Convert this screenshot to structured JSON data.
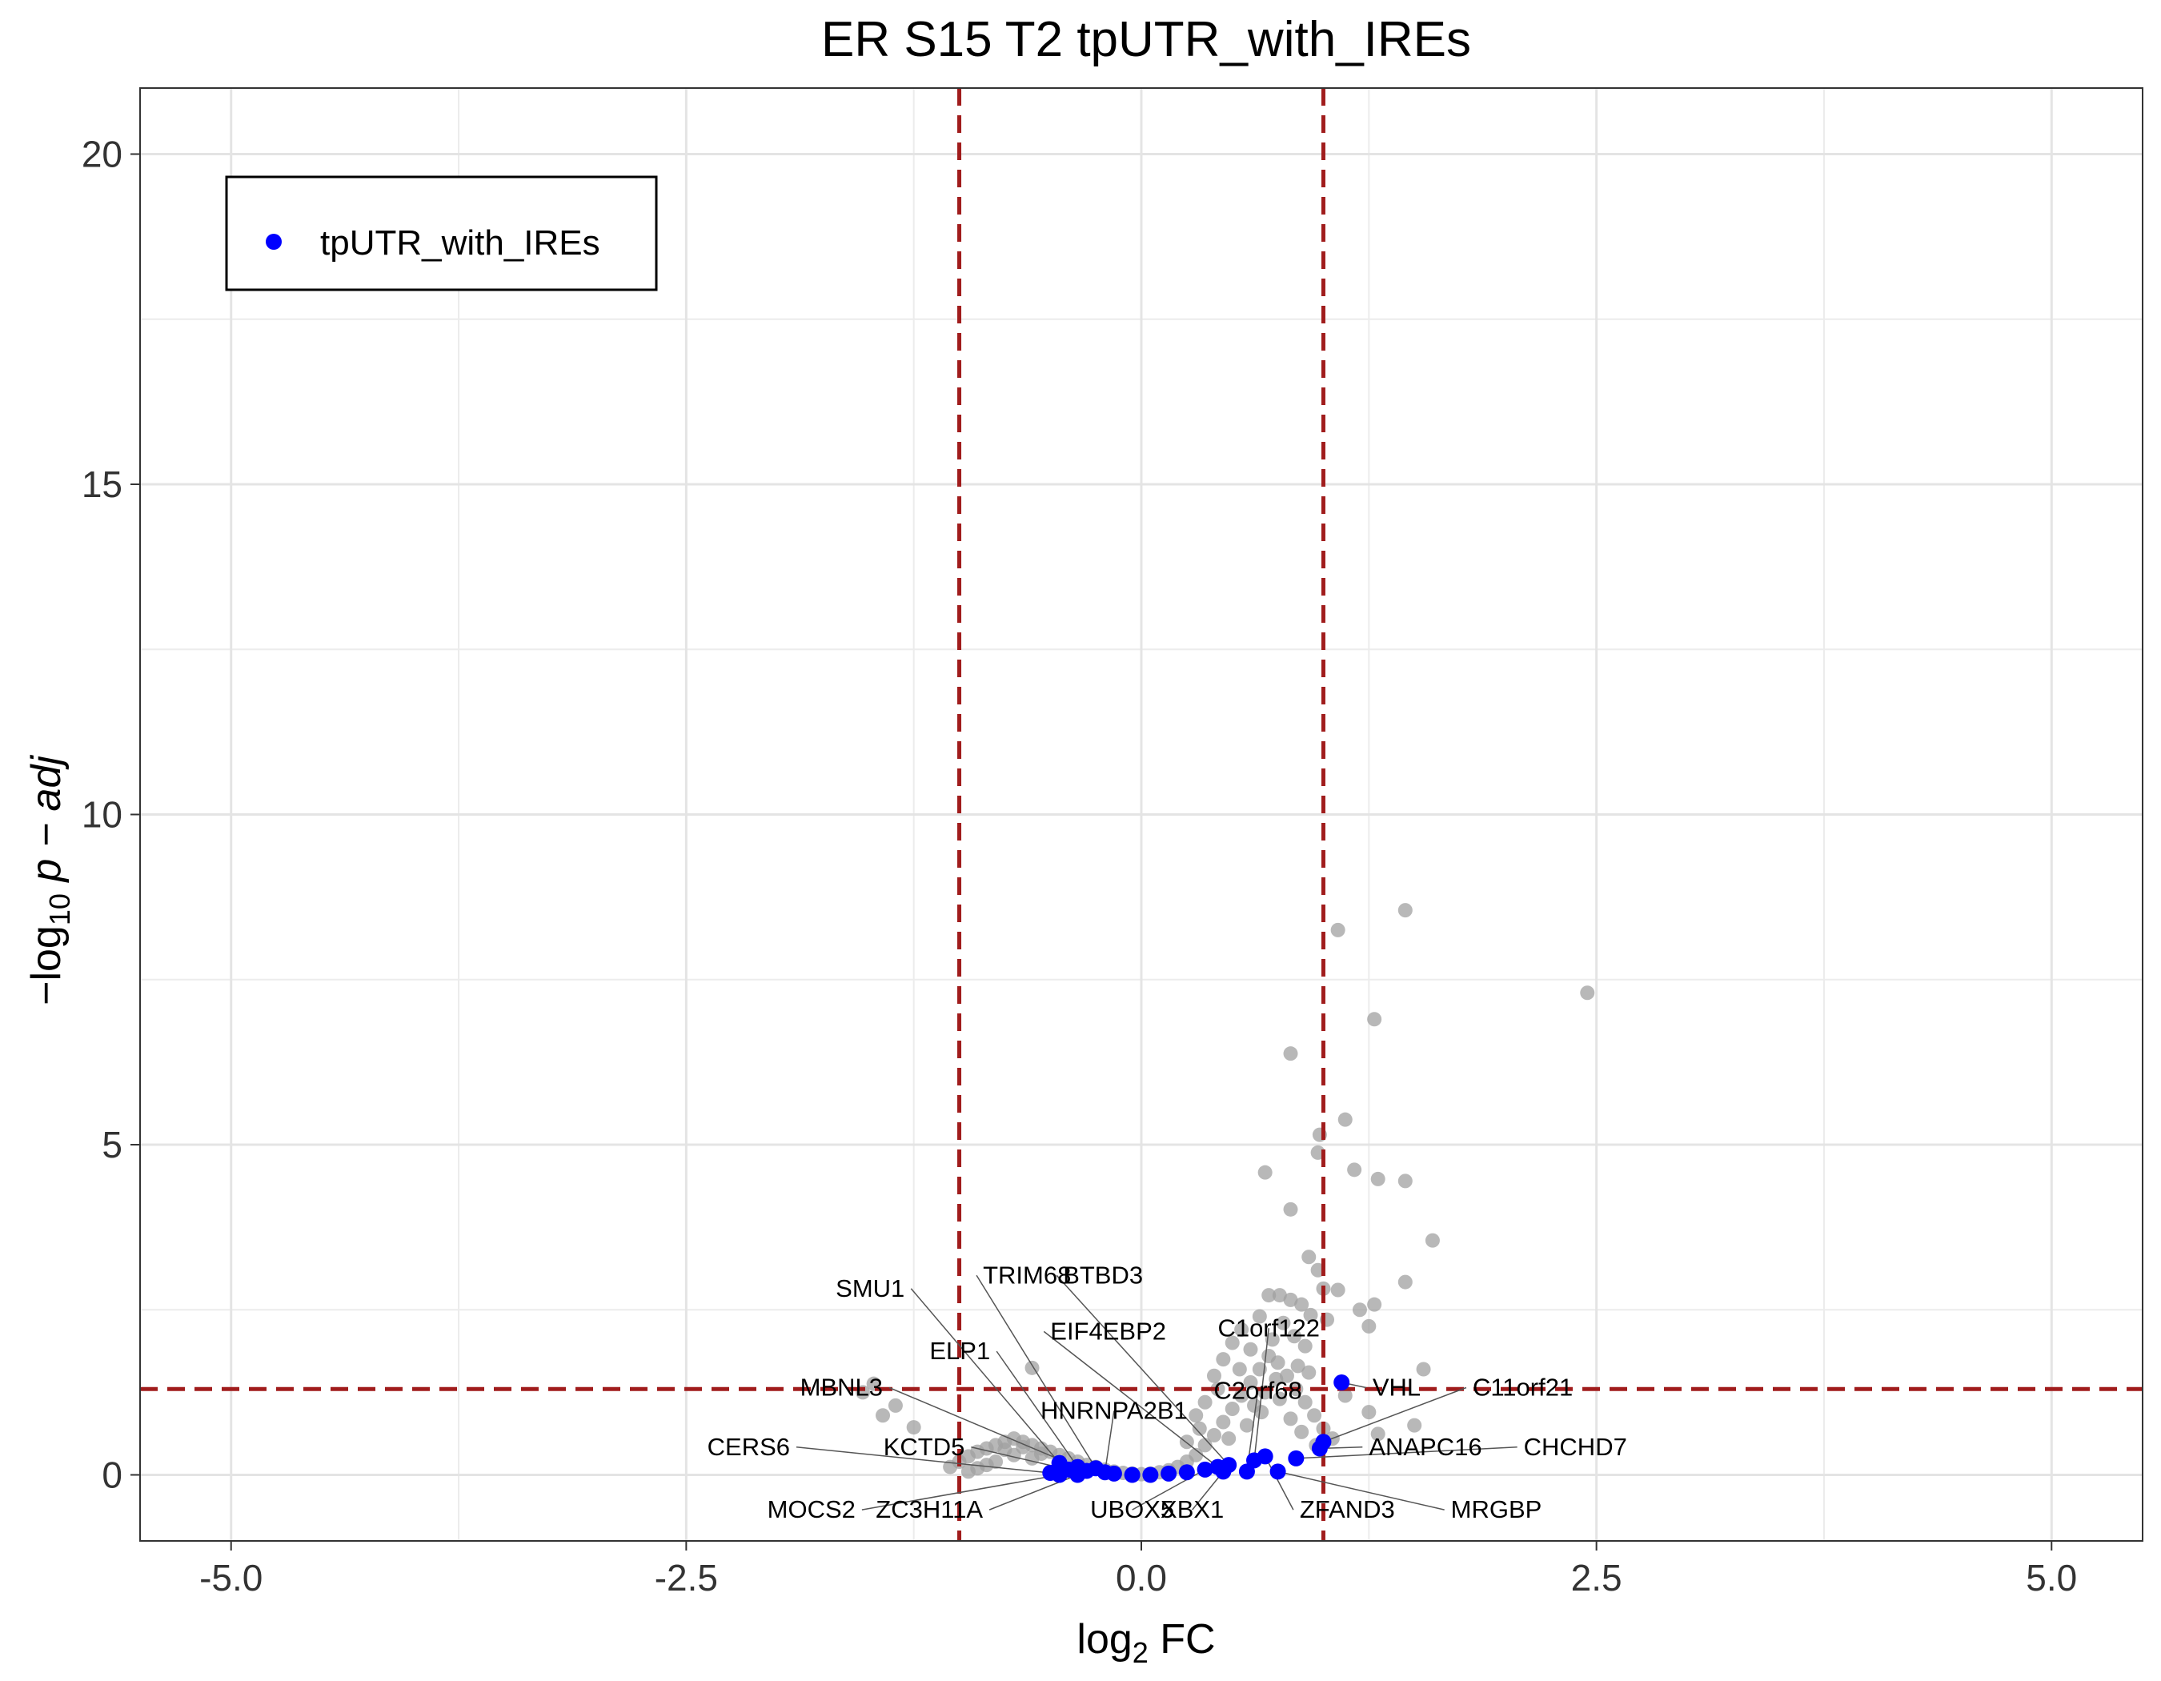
{
  "chart_data": {
    "type": "scatter",
    "title": "ER S15 T2 tpUTR_with_IREs",
    "xlabel": {
      "base": "log",
      "sub": "2",
      "rest": " FC"
    },
    "ylabel": {
      "pre": "−log",
      "sub": "10",
      "rest": " p − adj"
    },
    "xlim": [
      -5.5,
      5.5
    ],
    "ylim": [
      -1,
      21
    ],
    "x_ticks": [
      -5,
      -2.5,
      0,
      2.5,
      5
    ],
    "x_tick_labels": [
      "-5.0",
      "-2.5",
      "0.0",
      "2.5",
      "5.0"
    ],
    "y_ticks": [
      0,
      5,
      10,
      15,
      20
    ],
    "y_tick_labels": [
      "0",
      "5",
      "10",
      "15",
      "20"
    ],
    "thresholds": {
      "x": [
        -1,
        1
      ],
      "y": 1.3
    },
    "grid": true,
    "legend": {
      "position": "top-left",
      "entries": [
        {
          "name": "tpUTR_with_IREs",
          "color": "#0000ff"
        }
      ]
    },
    "colors": {
      "background_points": "#a0a0a0",
      "highlight_points": "#0000ff",
      "threshold_lines": "#a01c1c"
    },
    "background_points": [
      [
        1.45,
        8.55
      ],
      [
        1.08,
        8.25
      ],
      [
        2.45,
        7.3
      ],
      [
        1.28,
        6.9
      ],
      [
        0.82,
        6.38
      ],
      [
        1.12,
        5.38
      ],
      [
        0.98,
        5.15
      ],
      [
        0.97,
        4.88
      ],
      [
        1.17,
        4.62
      ],
      [
        0.68,
        4.58
      ],
      [
        1.3,
        4.48
      ],
      [
        1.45,
        4.45
      ],
      [
        0.82,
        4.02
      ],
      [
        1.6,
        3.55
      ],
      [
        0.92,
        3.3
      ],
      [
        0.97,
        3.1
      ],
      [
        1.45,
        2.92
      ],
      [
        1.0,
        2.82
      ],
      [
        1.08,
        2.8
      ],
      [
        0.7,
        2.72
      ],
      [
        0.76,
        2.72
      ],
      [
        0.82,
        2.65
      ],
      [
        0.88,
        2.58
      ],
      [
        1.2,
        2.5
      ],
      [
        1.28,
        2.58
      ],
      [
        0.93,
        2.42
      ],
      [
        1.02,
        2.35
      ],
      [
        1.25,
        2.25
      ],
      [
        -0.6,
        1.62
      ],
      [
        1.55,
        1.6
      ],
      [
        -1.47,
        1.38
      ],
      [
        -1.53,
        1.25
      ],
      [
        -1.35,
        1.05
      ],
      [
        -1.42,
        0.9
      ],
      [
        -1.25,
        0.72
      ],
      [
        1.12,
        1.2
      ],
      [
        1.25,
        0.95
      ],
      [
        1.5,
        0.75
      ],
      [
        1.3,
        0.62
      ],
      [
        -1.0,
        0.2
      ],
      [
        -0.95,
        0.28
      ],
      [
        -0.9,
        0.35
      ],
      [
        -0.85,
        0.4
      ],
      [
        -0.8,
        0.45
      ],
      [
        -0.75,
        0.5
      ],
      [
        -0.7,
        0.55
      ],
      [
        -0.65,
        0.5
      ],
      [
        -0.6,
        0.45
      ],
      [
        -0.55,
        0.4
      ],
      [
        -0.5,
        0.35
      ],
      [
        -0.45,
        0.3
      ],
      [
        -0.4,
        0.25
      ],
      [
        -0.35,
        0.2
      ],
      [
        -0.3,
        0.15
      ],
      [
        -0.25,
        0.12
      ],
      [
        -0.2,
        0.08
      ],
      [
        -0.15,
        0.05
      ],
      [
        -0.1,
        0.03
      ],
      [
        -0.05,
        0.02
      ],
      [
        0.0,
        0.01
      ],
      [
        0.05,
        0.02
      ],
      [
        0.1,
        0.04
      ],
      [
        0.15,
        0.07
      ],
      [
        0.2,
        0.12
      ],
      [
        0.25,
        0.2
      ],
      [
        0.3,
        0.3
      ],
      [
        0.35,
        0.45
      ],
      [
        0.4,
        0.6
      ],
      [
        0.45,
        0.8
      ],
      [
        0.5,
        1.0
      ],
      [
        0.55,
        1.2
      ],
      [
        0.6,
        1.4
      ],
      [
        0.65,
        1.6
      ],
      [
        0.7,
        1.8
      ],
      [
        0.75,
        1.7
      ],
      [
        0.8,
        1.5
      ],
      [
        0.85,
        1.3
      ],
      [
        0.9,
        1.1
      ],
      [
        0.95,
        0.9
      ],
      [
        1.0,
        0.7
      ],
      [
        1.05,
        0.55
      ],
      [
        0.35,
        1.1
      ],
      [
        0.4,
        1.5
      ],
      [
        0.45,
        1.75
      ],
      [
        0.5,
        2.0
      ],
      [
        0.55,
        2.2
      ],
      [
        0.6,
        1.9
      ],
      [
        0.65,
        2.4
      ],
      [
        0.72,
        2.05
      ],
      [
        0.78,
        2.3
      ],
      [
        0.84,
        2.1
      ],
      [
        0.9,
        1.95
      ],
      [
        0.3,
        0.9
      ],
      [
        0.42,
        1.3
      ],
      [
        0.62,
        1.05
      ],
      [
        0.68,
        1.25
      ],
      [
        0.74,
        1.45
      ],
      [
        0.86,
        1.65
      ],
      [
        0.92,
        1.55
      ],
      [
        -0.9,
        0.1
      ],
      [
        -0.8,
        0.2
      ],
      [
        -0.7,
        0.3
      ],
      [
        -0.6,
        0.25
      ],
      [
        -0.75,
        0.38
      ],
      [
        -0.65,
        0.42
      ],
      [
        -0.55,
        0.32
      ],
      [
        -0.85,
        0.15
      ],
      [
        -1.05,
        0.12
      ],
      [
        -0.95,
        0.05
      ],
      [
        0.25,
        0.5
      ],
      [
        0.32,
        0.7
      ],
      [
        0.48,
        0.55
      ],
      [
        0.58,
        0.75
      ],
      [
        0.66,
        0.95
      ],
      [
        0.76,
        1.15
      ],
      [
        0.82,
        0.85
      ],
      [
        0.88,
        0.65
      ],
      [
        0.96,
        0.45
      ],
      [
        0.54,
        1.6
      ]
    ],
    "points": [
      {
        "x": 1.1,
        "y": 1.4,
        "label": "VHL"
      },
      {
        "x": 1.0,
        "y": 0.5,
        "label": "C11orf21"
      },
      {
        "x": 0.98,
        "y": 0.4,
        "label": "ANAPC16"
      },
      {
        "x": 0.85,
        "y": 0.25,
        "label": "CHCHD7"
      },
      {
        "x": 0.75,
        "y": 0.05,
        "label": "MRGBP"
      },
      {
        "x": 0.62,
        "y": 0.22,
        "label": "C1orf122"
      },
      {
        "x": 0.68,
        "y": 0.28,
        "label": "ZFAND3"
      },
      {
        "x": 0.58,
        "y": 0.05,
        "label": "C2orf68"
      },
      {
        "x": 0.48,
        "y": 0.15,
        "label": "BTBD3"
      },
      {
        "x": 0.45,
        "y": 0.05,
        "label": "XBX1"
      },
      {
        "x": 0.42,
        "y": 0.12,
        "label": "EIF4EBP2"
      },
      {
        "x": 0.35,
        "y": 0.08,
        "label": "UBOX5"
      },
      {
        "x": -0.45,
        "y": 0.18,
        "label": "SMU1"
      },
      {
        "x": -0.35,
        "y": 0.12,
        "label": "ELP1"
      },
      {
        "x": -0.3,
        "y": 0.06,
        "label": "MBNL3"
      },
      {
        "x": -0.25,
        "y": 0.1,
        "label": "TRIM68"
      },
      {
        "x": -0.2,
        "y": 0.04,
        "label": "HNRNPA2B1"
      },
      {
        "x": -0.4,
        "y": 0.08,
        "label": "KCTD5"
      },
      {
        "x": -0.5,
        "y": 0.03,
        "label": "CERS6"
      },
      {
        "x": -0.45,
        "y": 0.0,
        "label": "MOCS2"
      },
      {
        "x": -0.35,
        "y": 0.0,
        "label": "ZC3H11A"
      },
      {
        "x": -0.15,
        "y": 0.02,
        "label": ""
      },
      {
        "x": -0.05,
        "y": 0.0,
        "label": ""
      },
      {
        "x": 0.05,
        "y": 0.0,
        "label": ""
      },
      {
        "x": 0.15,
        "y": 0.02,
        "label": ""
      },
      {
        "x": 0.25,
        "y": 0.04,
        "label": ""
      }
    ],
    "labels": [
      {
        "text": "SMU1",
        "x": -1.3,
        "y": 2.7,
        "anchor": "end",
        "ptx": -0.45,
        "pty": 0.18
      },
      {
        "text": "TRIM68",
        "x": -0.87,
        "y": 2.9,
        "anchor": "start",
        "ptx": -0.25,
        "pty": 0.1
      },
      {
        "text": "BTBD3",
        "x": -0.43,
        "y": 2.9,
        "anchor": "start",
        "ptx": 0.48,
        "pty": 0.15
      },
      {
        "text": "EIF4EBP2",
        "x": -0.5,
        "y": 2.05,
        "anchor": "start",
        "ptx": 0.42,
        "pty": 0.12
      },
      {
        "text": "C1orf122",
        "x": 0.7,
        "y": 2.1,
        "anchor": "middle",
        "ptx": 0.62,
        "pty": 0.22
      },
      {
        "text": "ELP1",
        "x": -0.83,
        "y": 1.75,
        "anchor": "end",
        "ptx": -0.35,
        "pty": 0.12
      },
      {
        "text": "MBNL3",
        "x": -1.42,
        "y": 1.2,
        "anchor": "end",
        "ptx": -0.3,
        "pty": 0.06
      },
      {
        "text": "C2orf68",
        "x": 0.64,
        "y": 1.15,
        "anchor": "middle",
        "ptx": 0.58,
        "pty": 0.05
      },
      {
        "text": "VHL",
        "x": 1.27,
        "y": 1.2,
        "anchor": "start",
        "ptx": 1.1,
        "pty": 1.4
      },
      {
        "text": "C11orf21",
        "x": 1.82,
        "y": 1.2,
        "anchor": "start",
        "ptx": 1.0,
        "pty": 0.5
      },
      {
        "text": "HNRNPA2B1",
        "x": -0.15,
        "y": 0.85,
        "anchor": "middle",
        "ptx": -0.2,
        "pty": 0.04
      },
      {
        "text": "CERS6",
        "x": -1.93,
        "y": 0.3,
        "anchor": "end",
        "ptx": -0.5,
        "pty": 0.03
      },
      {
        "text": "KCTD5",
        "x": -0.97,
        "y": 0.3,
        "anchor": "end",
        "ptx": -0.4,
        "pty": 0.08
      },
      {
        "text": "ANAPC16",
        "x": 1.25,
        "y": 0.3,
        "anchor": "start",
        "ptx": 0.98,
        "pty": 0.4
      },
      {
        "text": "CHCHD7",
        "x": 2.1,
        "y": 0.3,
        "anchor": "start",
        "ptx": 0.85,
        "pty": 0.25
      },
      {
        "text": "MOCS2",
        "x": -1.57,
        "y": -0.65,
        "anchor": "end",
        "ptx": -0.45,
        "pty": 0.0
      },
      {
        "text": "ZC3H11A",
        "x": -0.87,
        "y": -0.65,
        "anchor": "end",
        "ptx": -0.35,
        "pty": 0.0
      },
      {
        "text": "UBOX5",
        "x": -0.05,
        "y": -0.65,
        "anchor": "middle",
        "ptx": 0.35,
        "pty": 0.08
      },
      {
        "text": "XBX1",
        "x": 0.28,
        "y": -0.65,
        "anchor": "middle",
        "ptx": 0.45,
        "pty": 0.05
      },
      {
        "text": "ZFAND3",
        "x": 0.87,
        "y": -0.65,
        "anchor": "start",
        "ptx": 0.68,
        "pty": 0.28
      },
      {
        "text": "MRGBP",
        "x": 1.7,
        "y": -0.65,
        "anchor": "start",
        "ptx": 0.75,
        "pty": 0.05
      }
    ]
  }
}
